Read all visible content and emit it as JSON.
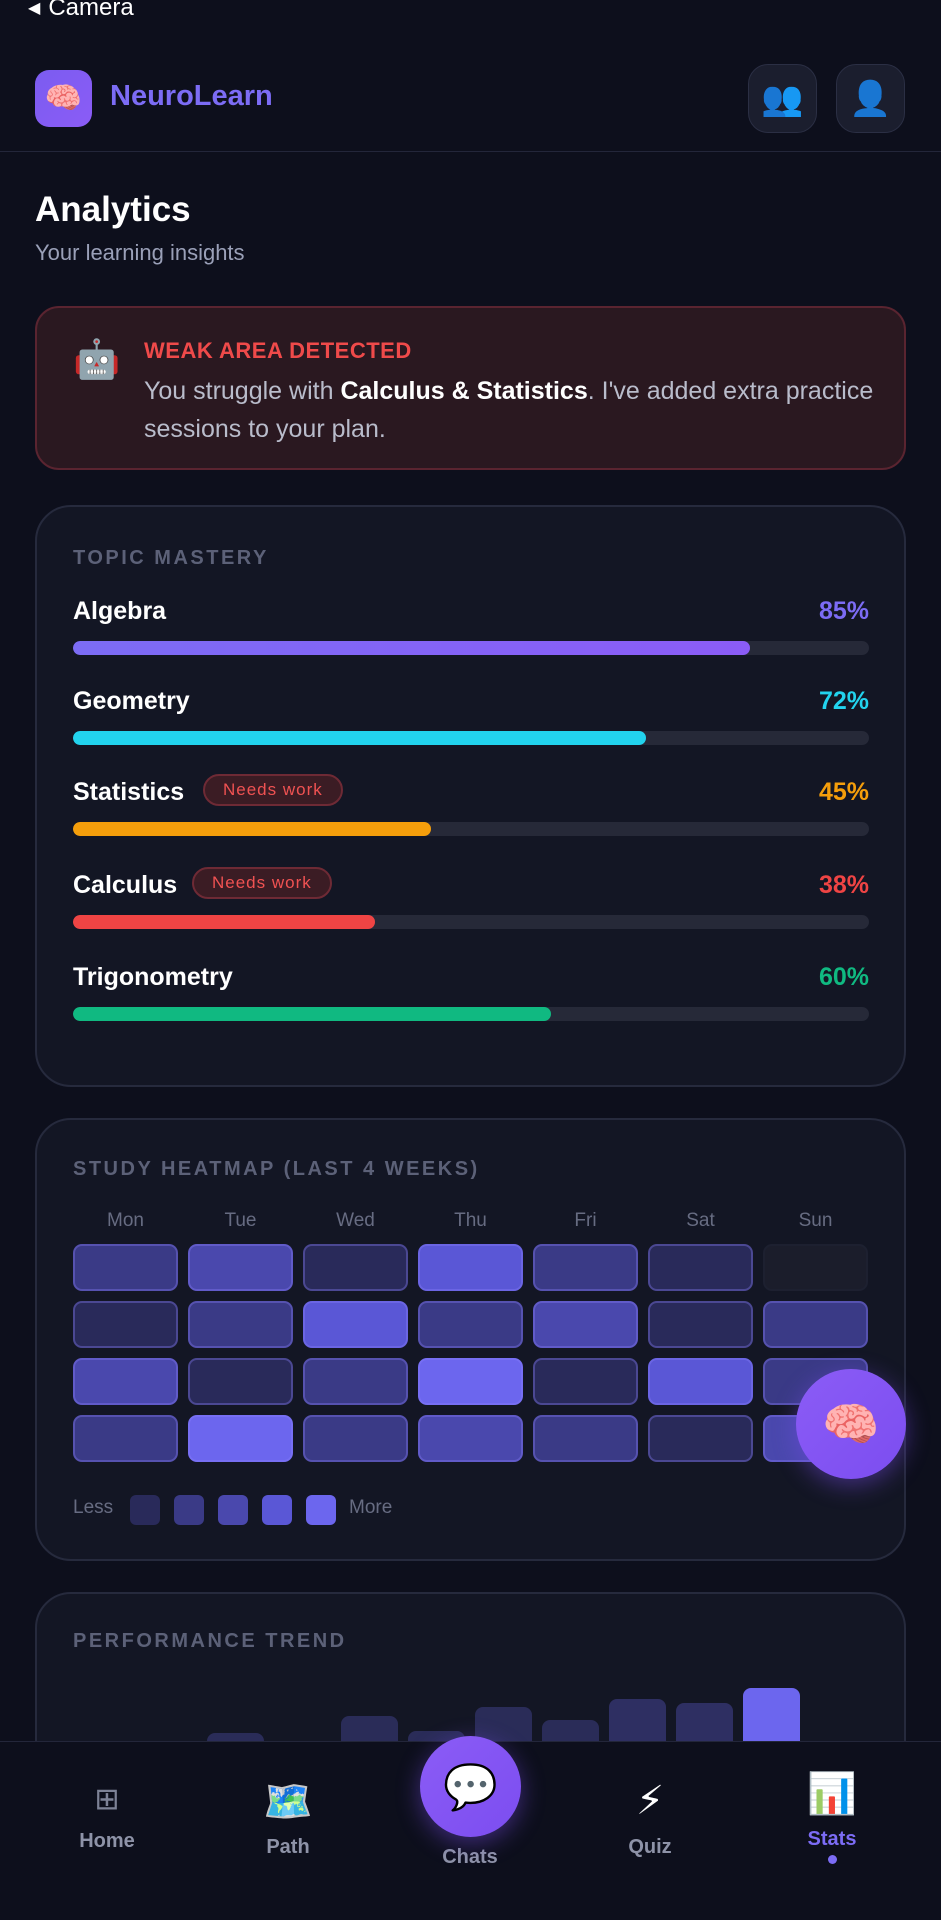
{
  "status": {
    "back_label": "Camera"
  },
  "header": {
    "logo_icon": "🧠",
    "app_name": "NeuroLearn",
    "group_icon": "👥",
    "profile_icon": "👤"
  },
  "page": {
    "title": "Analytics",
    "subtitle": "Your learning insights"
  },
  "alert": {
    "icon": "🤖",
    "title": "WEAK AREA DETECTED",
    "text_before": "You struggle with ",
    "text_bold": "Calculus & Statistics",
    "text_after": ". I've added extra practice sessions to your plan."
  },
  "mastery": {
    "label": "TOPIC MASTERY",
    "topics": [
      {
        "name": "Algebra",
        "percent": "85%",
        "value": 85,
        "color": "#7c6cf5",
        "color2": "#8b5cf6",
        "badge": ""
      },
      {
        "name": "Geometry",
        "percent": "72%",
        "value": 72,
        "color": "#22d3ee",
        "color2": "#22d3ee",
        "badge": ""
      },
      {
        "name": "Statistics",
        "percent": "45%",
        "value": 45,
        "color": "#f59e0b",
        "color2": "#f59e0b",
        "badge": "Needs work"
      },
      {
        "name": "Calculus",
        "percent": "38%",
        "value": 38,
        "color": "#ef4444",
        "color2": "#ef4444",
        "badge": "Needs work"
      },
      {
        "name": "Trigonometry",
        "percent": "60%",
        "value": 60,
        "color": "#10b981",
        "color2": "#10b981",
        "badge": ""
      }
    ]
  },
  "heatmap": {
    "label": "STUDY HEATMAP (LAST 4 WEEKS)",
    "days": [
      "Mon",
      "Tue",
      "Wed",
      "Thu",
      "Fri",
      "Sat",
      "Sun"
    ],
    "levels": [
      [
        2,
        3,
        1,
        4,
        2,
        1,
        0
      ],
      [
        1,
        2,
        4,
        2,
        3,
        1,
        2
      ],
      [
        3,
        1,
        2,
        5,
        1,
        4,
        2
      ],
      [
        2,
        5,
        2,
        3,
        2,
        1,
        3
      ]
    ],
    "legend_less": "Less",
    "legend_more": "More",
    "level_colors": [
      "#1b1d2b",
      "#292a5a",
      "#3a3a86",
      "#4a48ad",
      "#5a57d6",
      "#6c66ee"
    ]
  },
  "fab_icon": "🧠",
  "performance": {
    "label": "PERFORMANCE TREND",
    "values": [
      0,
      0,
      15,
      5,
      32,
      17,
      41,
      28,
      49,
      45,
      60
    ],
    "colors": [
      "#2a2c58",
      "#2a2c58",
      "#2a2c58",
      "#2a2c58",
      "#2a2c58",
      "#2a2c58",
      "#2a2c58",
      "#2a2c58",
      "#2e2f62",
      "#2e2f62",
      "#6c66ee"
    ]
  },
  "nav": {
    "items": [
      {
        "label": "Home",
        "icon": "⊞"
      },
      {
        "label": "Path",
        "icon": "🗺️"
      },
      {
        "label": "Chats",
        "icon": "💬"
      },
      {
        "label": "Quiz",
        "icon": "⚡"
      },
      {
        "label": "Stats",
        "icon": "📊"
      }
    ]
  }
}
